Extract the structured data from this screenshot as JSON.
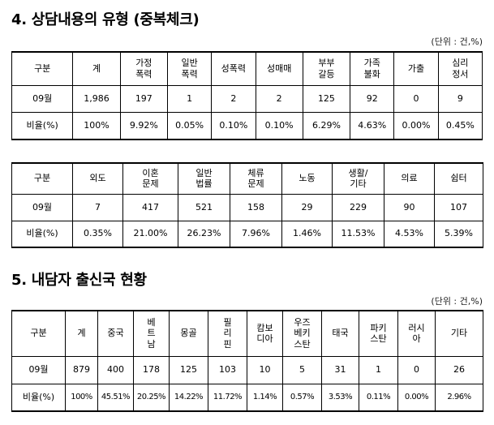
{
  "section4": {
    "title": "4. 상담내용의 유형 (중복체크)",
    "unit": "(단위 : 건,%)",
    "table1": {
      "headers": [
        "구분",
        "계",
        "가정\n폭력",
        "일반\n폭력",
        "성폭력",
        "성매매",
        "부부\n갈등",
        "가족\n불화",
        "가출",
        "심리\n정서"
      ],
      "count_row": [
        "09월",
        "1,986",
        "197",
        "1",
        "2",
        "2",
        "125",
        "92",
        "0",
        "9"
      ],
      "ratio_row": [
        "비율(%)",
        "100%",
        "9.92%",
        "0.05%",
        "0.10%",
        "0.10%",
        "6.29%",
        "4.63%",
        "0.00%",
        "0.45%"
      ]
    },
    "table2": {
      "headers": [
        "구분",
        "외도",
        "이혼\n문제",
        "일반\n법률",
        "체류\n문제",
        "노동",
        "생활/\n기타",
        "의료",
        "쉼터"
      ],
      "count_row": [
        "09월",
        "7",
        "417",
        "521",
        "158",
        "29",
        "229",
        "90",
        "107"
      ],
      "ratio_row": [
        "비율(%)",
        "0.35%",
        "21.00%",
        "26.23%",
        "7.96%",
        "1.46%",
        "11.53%",
        "4.53%",
        "5.39%"
      ]
    }
  },
  "section5": {
    "title": "5. 내담자 출신국 현황",
    "unit": "(단위 : 건,%)",
    "table3": {
      "headers": [
        "구분",
        "계",
        "중국",
        "베\n트\n남",
        "몽골",
        "필\n리\n핀",
        "캄보\n디아",
        "우즈\n베키\n스탄",
        "태국",
        "파키\n스탄",
        "러시\n아",
        "기타"
      ],
      "count_row": [
        "09월",
        "879",
        "400",
        "178",
        "125",
        "103",
        "10",
        "5",
        "31",
        "1",
        "0",
        "26"
      ],
      "ratio_row": [
        "비율(%)",
        "100%",
        "45.51%",
        "20.25%",
        "14.22%",
        "11.72%",
        "1.14%",
        "0.57%",
        "3.53%",
        "0.11%",
        "0.00%",
        "2.96%"
      ]
    }
  }
}
